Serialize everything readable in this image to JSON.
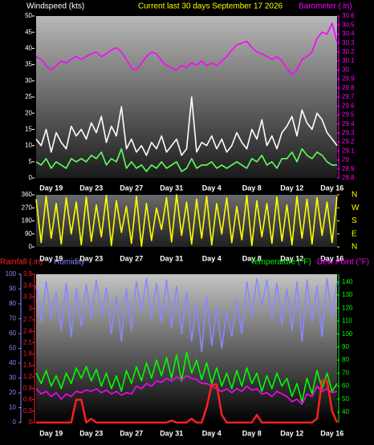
{
  "chart_data": [
    {
      "type": "line",
      "title": "Current last 30 days September 17 2026",
      "ylabel": "Windspeed (kts)",
      "y2label": "Barometer (.in)",
      "categories": [
        null,
        null,
        null,
        "Day 19",
        null,
        null,
        null,
        null,
        null,
        null,
        null,
        "Day 23",
        null,
        null,
        null,
        null,
        null,
        null,
        null,
        "Day 27",
        null,
        null,
        null,
        null,
        null,
        null,
        null,
        "Day 31",
        null,
        null,
        null,
        null,
        null,
        null,
        null,
        "Day 4",
        null,
        null,
        null,
        null,
        null,
        null,
        null,
        "Day 8",
        null,
        null,
        null,
        null,
        null,
        null,
        null,
        "Day 12",
        null,
        null,
        null,
        null,
        null,
        null,
        null,
        "Day 16",
        null
      ],
      "ylim": [
        0,
        50
      ],
      "yticks": [
        0,
        5,
        10,
        15,
        20,
        25,
        30,
        35,
        40,
        45,
        50
      ],
      "y2lim": [
        28.8,
        30.6
      ],
      "y2ticks": [
        28.8,
        28.9,
        29,
        29.1,
        29.2,
        29.3,
        29.4,
        29.5,
        29.6,
        29.7,
        29.8,
        29.9,
        30,
        30.1,
        30.2,
        30.3,
        30.4,
        30.5,
        30.6
      ],
      "series": [
        {
          "color": "#ffffff",
          "values": [
            12,
            10,
            15,
            8,
            14,
            11,
            9,
            16,
            13,
            15,
            12,
            17,
            14,
            19,
            11,
            16,
            13,
            22,
            9,
            12,
            8,
            10,
            7,
            11,
            9,
            13,
            8,
            10,
            12,
            7,
            9,
            25,
            8,
            11,
            10,
            13,
            9,
            12,
            8,
            10,
            14,
            11,
            9,
            15,
            12,
            18,
            10,
            13,
            9,
            14,
            16,
            19,
            13,
            21,
            17,
            15,
            20,
            18,
            14,
            12,
            10
          ]
        },
        {
          "color": "#60ff60",
          "values": [
            5,
            4,
            6,
            3,
            5,
            4,
            3,
            6,
            5,
            6,
            5,
            7,
            6,
            8,
            4,
            6,
            5,
            9,
            3,
            5,
            3,
            4,
            2,
            4,
            3,
            5,
            3,
            4,
            5,
            2,
            3,
            6,
            3,
            4,
            4,
            5,
            3,
            4,
            3,
            4,
            5,
            4,
            3,
            6,
            5,
            7,
            4,
            5,
            3,
            6,
            6,
            8,
            5,
            9,
            7,
            6,
            8,
            7,
            5,
            4,
            4
          ]
        },
        {
          "color": "#ff00ff",
          "axis": "y2",
          "values": [
            30.15,
            30.12,
            30.05,
            30,
            30.05,
            30.1,
            30.08,
            30.12,
            30.15,
            30.12,
            30.15,
            30.18,
            30.2,
            30.15,
            30.18,
            30.22,
            30.25,
            30.2,
            30.12,
            30.02,
            30,
            30.08,
            30.15,
            30.2,
            30.18,
            30.1,
            30.05,
            30.02,
            30,
            30.05,
            30.03,
            30.08,
            30.05,
            30.1,
            30.05,
            30.08,
            30.05,
            30.1,
            30.15,
            30.22,
            30.28,
            30.3,
            30.32,
            30.25,
            30.2,
            30.18,
            30.15,
            30.12,
            30.15,
            30.1,
            30.02,
            29.95,
            30,
            30.12,
            30.15,
            30.2,
            30.35,
            30.42,
            30.4,
            30.52,
            30.3
          ]
        }
      ]
    },
    {
      "type": "line",
      "categories": [
        null,
        null,
        null,
        "Day 19",
        null,
        null,
        null,
        null,
        null,
        null,
        null,
        "Day 23",
        null,
        null,
        null,
        null,
        null,
        null,
        null,
        "Day 27",
        null,
        null,
        null,
        null,
        null,
        null,
        null,
        "Day 31",
        null,
        null,
        null,
        null,
        null,
        null,
        null,
        "Day 4",
        null,
        null,
        null,
        null,
        null,
        null,
        null,
        "Day 8",
        null,
        null,
        null,
        null,
        null,
        null,
        null,
        "Day 12",
        null,
        null,
        null,
        null,
        null,
        null,
        null,
        "Day 16",
        null
      ],
      "ylim": [
        0,
        360
      ],
      "yticks": [
        0,
        90,
        180,
        270,
        360
      ],
      "y2lim": [
        0,
        360
      ],
      "y2ticks": [
        {
          "value": 360,
          "label": "N"
        },
        {
          "value": 270,
          "label": "W"
        },
        {
          "value": 180,
          "label": "S"
        },
        {
          "value": 90,
          "label": "E"
        },
        {
          "value": 0,
          "label": "N"
        }
      ],
      "series": [
        {
          "color": "#ffff00",
          "values": [
            330,
            30,
            350,
            60,
            300,
            20,
            340,
            90,
            310,
            15,
            345,
            40,
            290,
            70,
            355,
            10,
            320,
            100,
            280,
            25,
            350,
            5,
            300,
            45,
            270,
            120,
            340,
            35,
            360,
            80,
            310,
            20,
            330,
            60,
            350,
            15,
            300,
            90,
            340,
            30,
            280,
            50,
            355,
            10,
            320,
            70,
            300,
            25,
            345,
            40,
            290,
            15,
            350,
            60,
            330,
            20,
            340,
            80,
            310,
            30,
            350
          ]
        }
      ]
    },
    {
      "type": "line",
      "y3label": "Rainfall (.in)",
      "categories": [
        null,
        null,
        null,
        "Day 19",
        null,
        null,
        null,
        null,
        null,
        null,
        null,
        "Day 23",
        null,
        null,
        null,
        null,
        null,
        null,
        null,
        "Day 27",
        null,
        null,
        null,
        null,
        null,
        null,
        null,
        "Day 31",
        null,
        null,
        null,
        null,
        null,
        null,
        null,
        "Day 4",
        null,
        null,
        null,
        null,
        null,
        null,
        null,
        "Day 8",
        null,
        null,
        null,
        null,
        null,
        null,
        null,
        "Day 12",
        null,
        null,
        null,
        null,
        null,
        null,
        null,
        "Day 16",
        null
      ],
      "ylim": [
        0,
        100
      ],
      "yticks": [
        0,
        10,
        20,
        30,
        40,
        50,
        60,
        70,
        80,
        90,
        100
      ],
      "y2lim": [
        32,
        146
      ],
      "y2ticks": [
        40,
        50,
        60,
        70,
        80,
        90,
        100,
        110,
        120,
        130,
        140
      ],
      "y3lim": [
        0,
        3.9
      ],
      "y3ticks": [
        0,
        0.3,
        0.6,
        0.9,
        1.2,
        1.5,
        1.8,
        2.1,
        2.4,
        2.7,
        3,
        3.3,
        3.6,
        3.9
      ],
      "series": [
        {
          "name": "Humidity",
          "color": "#8888ff",
          "values": [
            92,
            68,
            95,
            70,
            88,
            62,
            94,
            58,
            90,
            65,
            93,
            70,
            96,
            72,
            91,
            60,
            85,
            55,
            90,
            62,
            95,
            75,
            97,
            70,
            94,
            68,
            96,
            64,
            92,
            60,
            88,
            55,
            80,
            48,
            85,
            52,
            78,
            50,
            75,
            58,
            82,
            60,
            95,
            72,
            97,
            78,
            96,
            70,
            94,
            66,
            90,
            62,
            95,
            55,
            96,
            68,
            92,
            58,
            97,
            72,
            95
          ]
        },
        {
          "name": "Temperature (°F)",
          "color": "#00ff00",
          "axis": "y2",
          "values": [
            70,
            62,
            72,
            60,
            68,
            58,
            70,
            62,
            74,
            66,
            75,
            64,
            73,
            60,
            70,
            58,
            68,
            56,
            72,
            62,
            75,
            64,
            78,
            66,
            80,
            68,
            82,
            66,
            84,
            64,
            86,
            70,
            80,
            65,
            78,
            62,
            74,
            60,
            70,
            58,
            72,
            60,
            74,
            62,
            70,
            56,
            68,
            58,
            70,
            60,
            66,
            52,
            62,
            48,
            66,
            54,
            72,
            58,
            70,
            56,
            62
          ]
        },
        {
          "name": "Dew Point (°F)",
          "color": "#ff00ff",
          "axis": "y2",
          "values": [
            58,
            54,
            56,
            52,
            55,
            50,
            54,
            52,
            56,
            55,
            57,
            56,
            58,
            55,
            57,
            54,
            56,
            53,
            55,
            54,
            60,
            58,
            62,
            60,
            64,
            63,
            66,
            64,
            67,
            65,
            68,
            66,
            65,
            62,
            62,
            60,
            58,
            56,
            58,
            55,
            58,
            56,
            60,
            57,
            58,
            54,
            55,
            52,
            56,
            54,
            52,
            48,
            50,
            46,
            54,
            52,
            60,
            56,
            58,
            55,
            56
          ]
        },
        {
          "color": "#ff2020",
          "axis": "y3",
          "values": [
            0,
            0,
            0,
            0,
            0,
            0,
            0,
            0,
            0.6,
            0.6,
            0,
            0.1,
            0,
            0,
            0,
            0,
            0,
            0,
            0,
            0,
            0,
            0,
            0,
            0,
            0,
            0,
            0,
            0.05,
            0,
            0,
            0,
            0.1,
            0,
            0,
            0.4,
            1,
            1,
            0.2,
            0,
            0,
            0,
            0,
            0,
            0,
            0.2,
            0,
            0,
            0,
            0,
            0,
            0,
            0,
            0,
            0,
            0,
            0,
            0.1,
            1.1,
            1.1,
            0.3,
            0
          ]
        }
      ]
    }
  ]
}
